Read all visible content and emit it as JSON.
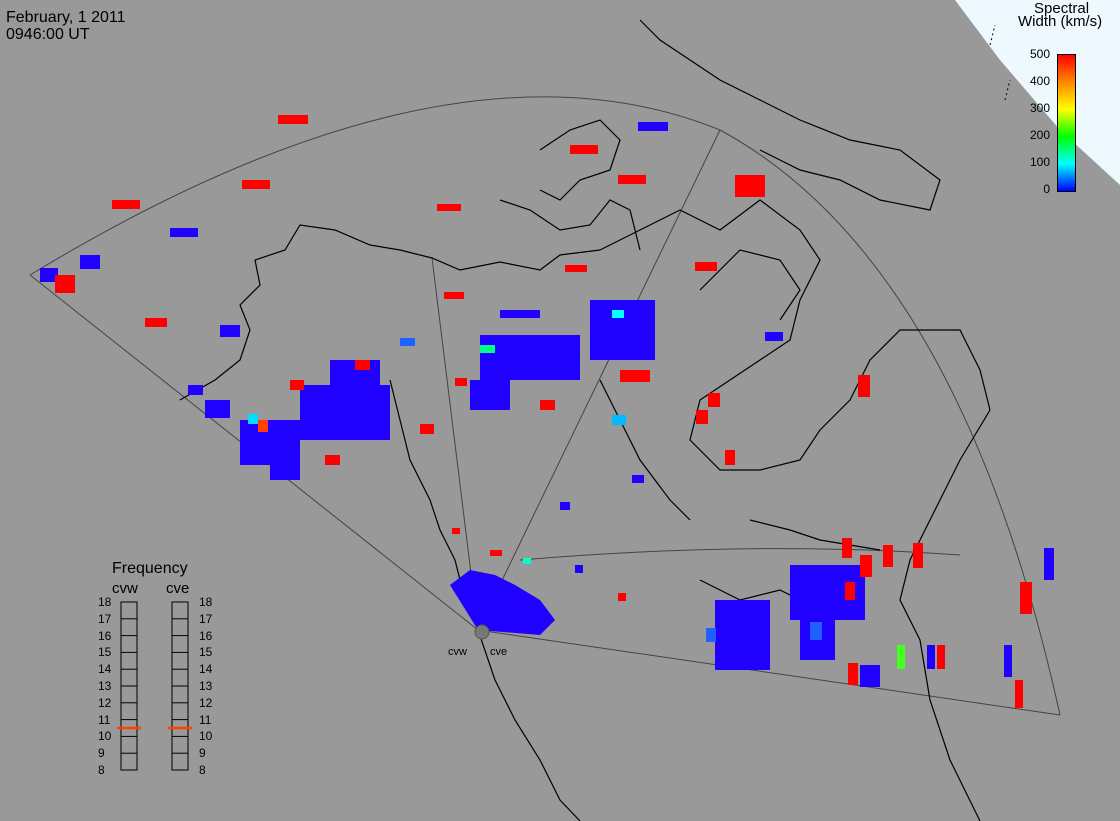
{
  "header": {
    "date": "February, 1 2011",
    "time": "0946:00 UT"
  },
  "colorbar": {
    "title_line1": "Spectral",
    "title_line2": "Width (km/s)",
    "ticks": [
      "500",
      "400",
      "300",
      "200",
      "100",
      "0"
    ],
    "colors": [
      "#ff0000",
      "#ff8800",
      "#ffff00",
      "#00ff00",
      "#00ffff",
      "#0000ff"
    ]
  },
  "frequency_panel": {
    "title": "Frequency",
    "columns": [
      "cvw",
      "cve"
    ],
    "ticks": [
      "18",
      "17",
      "16",
      "15",
      "14",
      "13",
      "12",
      "11",
      "10",
      "9",
      "8"
    ],
    "selected_mhz": 10.5,
    "marker_color": "#ff4000"
  },
  "sites": [
    "cvw",
    "cve"
  ],
  "colors": {
    "background": "#999999",
    "blue_echo": "#2000ff",
    "red_echo": "#ff0000",
    "cyan_echo": "#00ddff",
    "green_echo": "#00ff44",
    "polar_cap": "#eef8ff"
  }
}
